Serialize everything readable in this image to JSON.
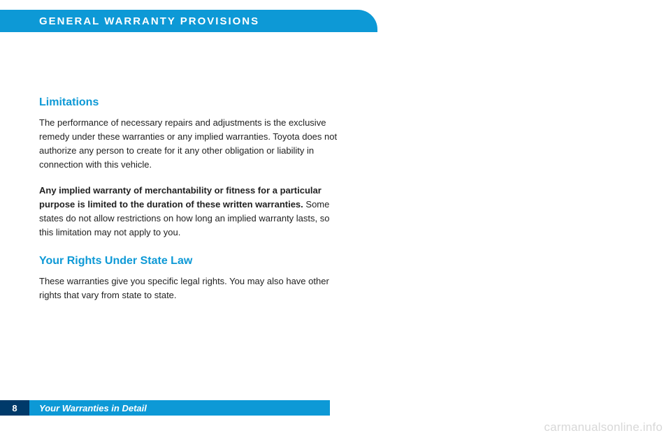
{
  "header": {
    "title": "General Warranty Provisions"
  },
  "sections": [
    {
      "title": "Limitations",
      "paragraphs": [
        {
          "text": "The performance of necessary repairs and adjustments is the exclusive remedy under these warranties or any implied warranties. Toyota does not authorize any person to create for it any other obligation or liability in connection with this vehicle."
        },
        {
          "bold_lead": "Any implied warranty of merchantability or fitness for a particular purpose is limited to the duration of these written warranties.",
          "text": " Some states do not allow restrictions on how long an implied warranty lasts, so this limitation may not apply to you."
        }
      ]
    },
    {
      "title": "Your Rights Under State Law",
      "paragraphs": [
        {
          "text": "These warranties give you specific legal rights. You may also have other rights that vary from state to state."
        }
      ]
    }
  ],
  "footer": {
    "page": "8",
    "label": "Your Warranties in Detail"
  },
  "watermark": "carmanualsonline.info",
  "colors": {
    "header_bg": "#0d99d6",
    "accent_text": "#0d99d6",
    "footer_num_bg": "#003a6a",
    "footer_label_bg": "#0d99d6",
    "body_text": "#222222",
    "watermark": "#d8d8d8",
    "page_bg": "#ffffff"
  }
}
